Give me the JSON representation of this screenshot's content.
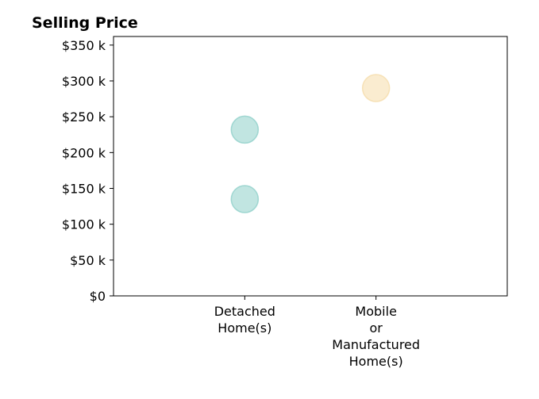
{
  "chart_data": {
    "type": "scatter",
    "title": "Selling Price",
    "xlabel": "",
    "ylabel": "",
    "categories": [
      [
        "Detached",
        "Home(s)"
      ],
      [
        "Mobile",
        "or",
        "Manufactured",
        "Home(s)"
      ]
    ],
    "x_range": [
      -1,
      2
    ],
    "ylim": [
      0,
      362000
    ],
    "yticks": [
      0,
      50000,
      100000,
      150000,
      200000,
      250000,
      300000,
      350000
    ],
    "ytick_labels": [
      "$0",
      "$50 k",
      "$100 k",
      "$150 k",
      "$200 k",
      "$250 k",
      "$300 k",
      "$350 k"
    ],
    "grid": false,
    "points": [
      {
        "category_index": 0,
        "y": 232000,
        "color": "#8ecfc9"
      },
      {
        "category_index": 0,
        "y": 135000,
        "color": "#8ecfc9"
      },
      {
        "category_index": 1,
        "y": 290000,
        "color": "#f5dcaa"
      }
    ],
    "marker_opacity": 0.55
  }
}
